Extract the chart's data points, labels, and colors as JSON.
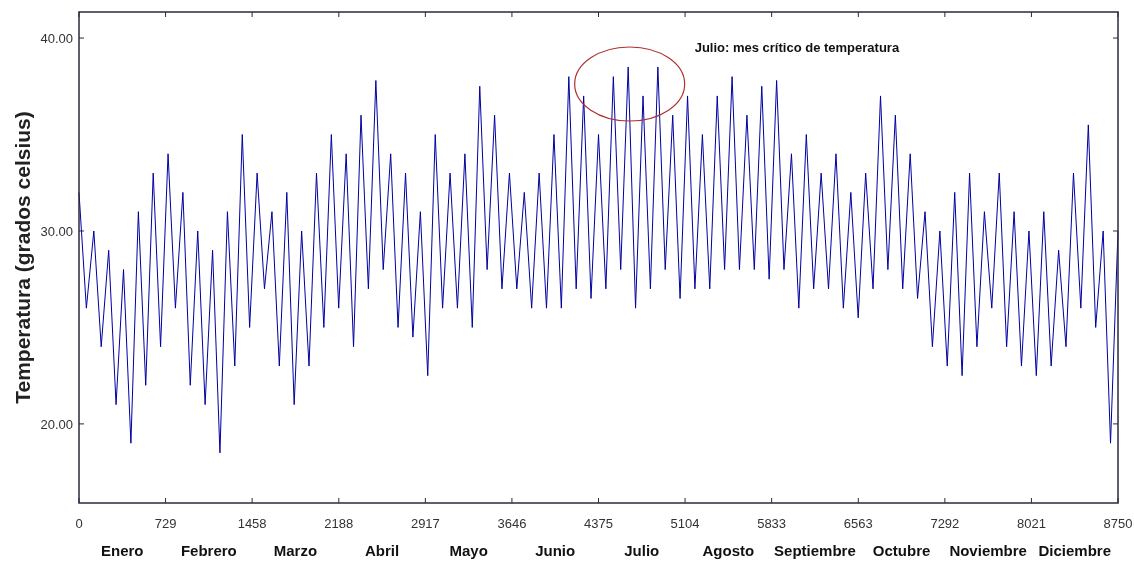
{
  "chart_data": {
    "type": "line",
    "ylabel": "Temperatura (grados celsius)",
    "xlim": [
      0,
      8750
    ],
    "xticks": [
      0,
      729,
      1458,
      2188,
      2917,
      3646,
      4375,
      5104,
      5833,
      6563,
      7292,
      8021,
      8750
    ],
    "ylim": [
      15.9,
      41.35
    ],
    "yticks": [
      {
        "value": 20,
        "label": "20.00"
      },
      {
        "value": 30,
        "label": "30.00"
      },
      {
        "value": 40,
        "label": "40.00"
      }
    ],
    "grid": false,
    "marker": "none",
    "line_style": "solid",
    "series": [
      {
        "color": "#0000a0",
        "x": [
          0,
          62,
          125,
          187,
          250,
          312,
          375,
          437,
          500,
          562,
          625,
          687,
          750,
          812,
          875,
          937,
          1000,
          1062,
          1125,
          1187,
          1250,
          1312,
          1375,
          1437,
          1500,
          1562,
          1625,
          1687,
          1750,
          1812,
          1875,
          1937,
          2000,
          2062,
          2125,
          2187,
          2250,
          2312,
          2375,
          2437,
          2500,
          2562,
          2625,
          2687,
          2750,
          2812,
          2875,
          2937,
          3000,
          3062,
          3125,
          3187,
          3250,
          3312,
          3375,
          3437,
          3500,
          3562,
          3625,
          3687,
          3750,
          3812,
          3875,
          3937,
          4000,
          4062,
          4125,
          4187,
          4250,
          4312,
          4375,
          4437,
          4500,
          4562,
          4625,
          4687,
          4750,
          4812,
          4875,
          4937,
          5000,
          5062,
          5125,
          5187,
          5250,
          5312,
          5375,
          5437,
          5500,
          5562,
          5625,
          5687,
          5750,
          5812,
          5875,
          5937,
          6000,
          6062,
          6125,
          6187,
          6250,
          6312,
          6375,
          6437,
          6500,
          6562,
          6625,
          6687,
          6750,
          6812,
          6875,
          6937,
          7000,
          7062,
          7125,
          7187,
          7250,
          7312,
          7375,
          7437,
          7500,
          7562,
          7625,
          7687,
          7750,
          7812,
          7875,
          7937,
          8000,
          8062,
          8125,
          8187,
          8250,
          8312,
          8375,
          8437,
          8500,
          8562,
          8625,
          8687,
          8750
        ],
        "values": [
          32,
          26,
          30,
          24,
          29,
          21,
          28,
          19,
          31,
          22,
          33,
          24,
          34,
          26,
          32,
          22,
          30,
          21,
          29,
          18.5,
          31,
          23,
          35,
          25,
          33,
          27,
          31,
          23,
          32,
          21,
          30,
          23,
          33,
          25,
          35,
          26,
          34,
          24,
          36,
          27,
          37.8,
          28,
          34,
          25,
          33,
          24.5,
          31,
          22.5,
          35,
          26,
          33,
          26,
          34,
          25,
          37.5,
          28,
          36,
          27,
          33,
          27,
          32,
          26,
          33,
          26,
          35,
          26,
          38,
          27,
          37,
          26.5,
          35,
          27,
          38,
          28,
          38.5,
          26,
          37,
          27,
          38.5,
          28,
          36,
          26.5,
          37,
          27,
          35,
          27,
          37,
          28,
          38,
          28,
          36,
          28,
          37.5,
          27.5,
          37.8,
          28,
          34,
          26,
          35,
          27,
          33,
          27,
          34,
          26,
          32,
          25.5,
          33,
          27,
          37,
          28,
          36,
          27,
          34,
          26.5,
          31,
          24,
          30,
          23,
          32,
          22.5,
          33,
          24,
          31,
          26,
          33,
          24,
          31,
          23,
          30,
          22.5,
          31,
          23,
          29,
          24,
          33,
          26,
          35.5,
          25,
          30,
          19,
          30
        ]
      }
    ],
    "annotations": [
      "Julio: mes crítico  de temperatura",
      "Enero",
      "Febrero",
      "Marzo",
      "Abril",
      "Mayo",
      "Junio",
      "Julio",
      "Agosto",
      "Septiembre",
      "Octubre",
      "Noviembre",
      "Diciembre"
    ]
  }
}
